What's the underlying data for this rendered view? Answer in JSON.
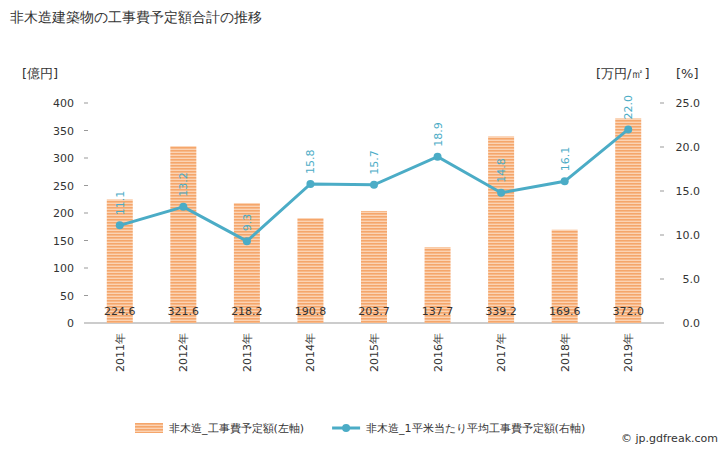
{
  "chart_data": {
    "type": "bar",
    "title": "非木造建築物の工事費予定額合計の推移",
    "categories": [
      "2011年",
      "2012年",
      "2013年",
      "2014年",
      "2015年",
      "2016年",
      "2017年",
      "2018年",
      "2019年"
    ],
    "series": [
      {
        "name": "非木造_工事費予定額(左軸)",
        "type": "bar",
        "color": "#f5a66b",
        "values": [
          224.6,
          321.6,
          218.2,
          190.8,
          203.7,
          137.7,
          339.2,
          169.6,
          372.0
        ],
        "value_labels": [
          "224.6",
          "321.6",
          "218.2",
          "190.8",
          "203.7",
          "137.7",
          "339.2",
          "169.6",
          "372.0"
        ]
      },
      {
        "name": "非木造_1平米当たり平均工事費予定額(右軸)",
        "type": "line",
        "axis": "y2",
        "color": "#4bacc6",
        "marker": "circle",
        "values": [
          11.1,
          13.2,
          9.3,
          15.8,
          15.7,
          18.9,
          14.8,
          16.1,
          22.0
        ],
        "value_labels": [
          "11.1",
          "13.2",
          "9.3",
          "15.8",
          "15.7",
          "18.9",
          "14.8",
          "16.1",
          "22.0"
        ]
      }
    ],
    "ylim": [
      0,
      400
    ],
    "yticks": [
      0,
      50,
      100,
      150,
      200,
      250,
      300,
      350,
      400
    ],
    "y2lim": [
      0,
      25
    ],
    "y2ticks": [
      {
        "value": 0,
        "label": "0.0"
      },
      {
        "value": 5,
        "label": "5.0"
      },
      {
        "value": 10,
        "label": "10.0"
      },
      {
        "value": 15,
        "label": "15.0"
      },
      {
        "value": 20,
        "label": "20.0"
      },
      {
        "value": 25,
        "label": "25.0"
      }
    ],
    "y_label": "[億円]",
    "y2_label": "[万円/㎡]",
    "annotations": [
      "[%]",
      "© jp.gdfreak.com"
    ],
    "data_labels": true,
    "grid": false,
    "legend": "bottom"
  }
}
